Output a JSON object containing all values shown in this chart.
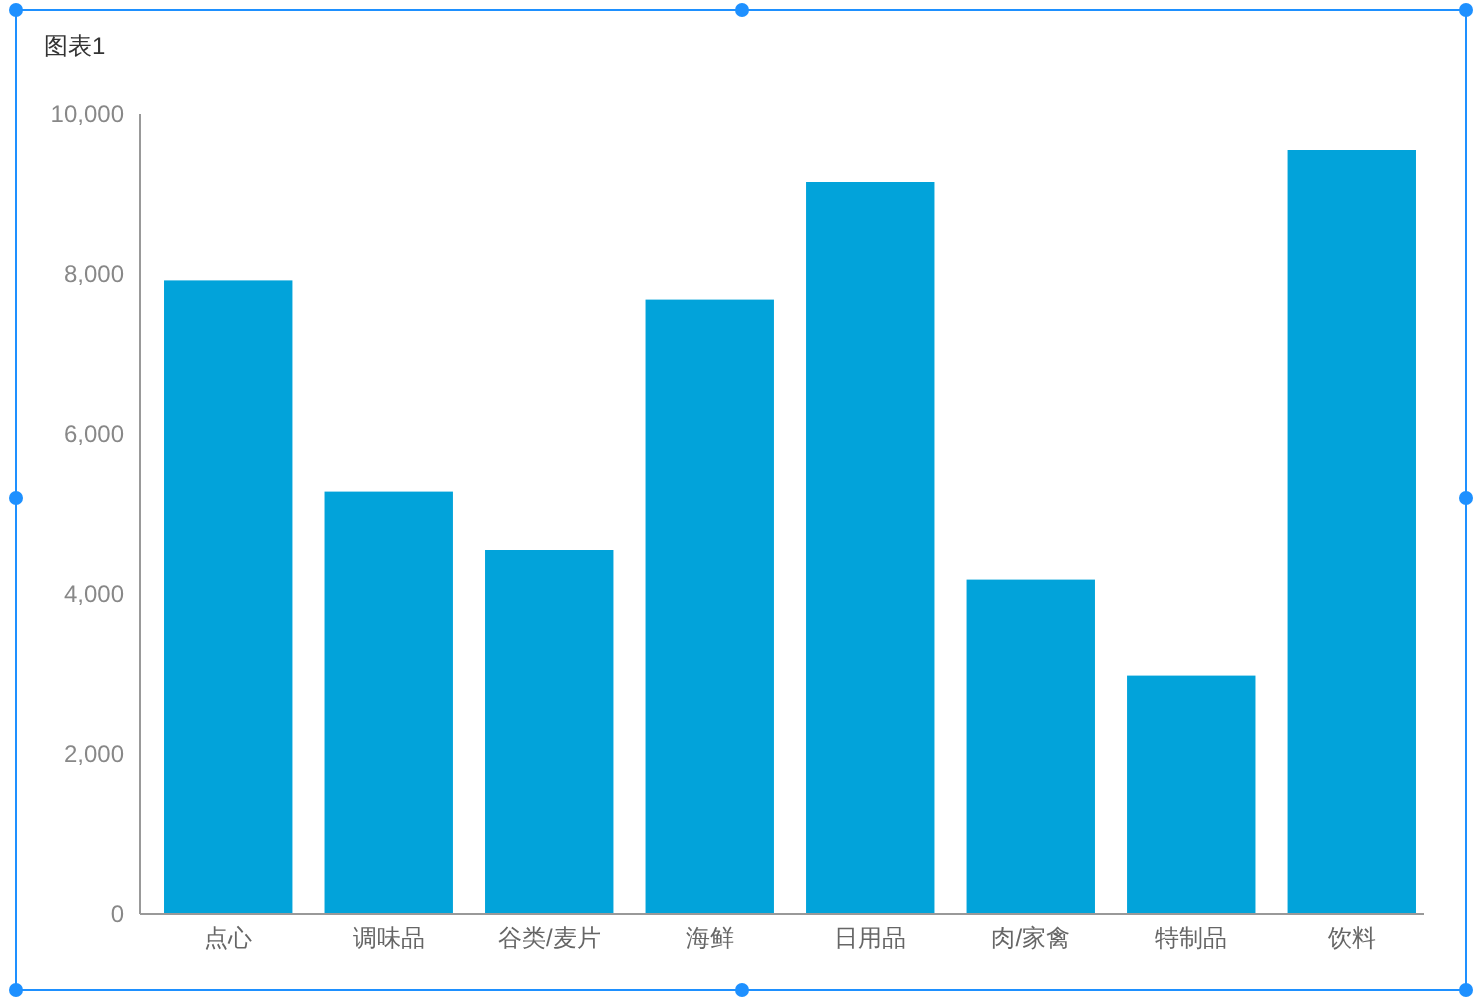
{
  "chart_data": {
    "type": "bar",
    "title": "图表1",
    "categories": [
      "点心",
      "调味品",
      "谷类/麦片",
      "海鲜",
      "日用品",
      "肉/家禽",
      "特制品",
      "饮料"
    ],
    "values": [
      7920,
      5280,
      4550,
      7680,
      9150,
      4180,
      2980,
      9550
    ],
    "color": "#02a3da",
    "ylim": [
      0,
      10000
    ],
    "yticks": [
      {
        "value": 0,
        "label": "0"
      },
      {
        "value": 2000,
        "label": "2,000"
      },
      {
        "value": 4000,
        "label": "4,000"
      },
      {
        "value": 6000,
        "label": "6,000"
      },
      {
        "value": 8000,
        "label": "8,000"
      },
      {
        "value": 10000,
        "label": "10,000"
      }
    ],
    "grid": false
  }
}
